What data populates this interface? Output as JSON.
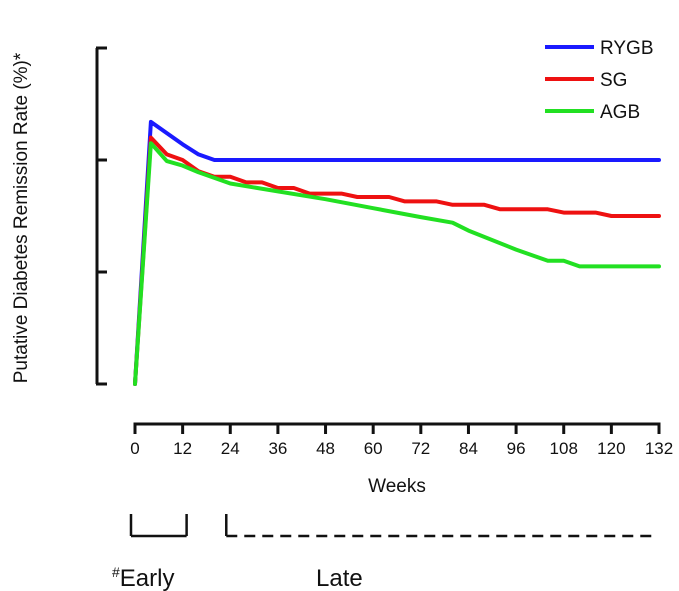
{
  "chart_data": {
    "type": "line",
    "title": "",
    "xlabel": "Weeks",
    "ylabel": "Putative Diabetes Remission Rate (%)*",
    "xlim": [
      0,
      132
    ],
    "ylim": [
      0,
      3
    ],
    "y_ticks_labeled": false,
    "x_ticks": [
      "0",
      "12",
      "24",
      "36",
      "48",
      "60",
      "72",
      "84",
      "96",
      "108",
      "120",
      "132"
    ],
    "legend_position": "top-right",
    "series": [
      {
        "name": "RYGB",
        "color": "#1a1aff",
        "x": [
          0,
          4,
          8,
          12,
          16,
          20,
          24,
          36,
          48,
          60,
          72,
          84,
          96,
          108,
          120,
          132
        ],
        "y": [
          0,
          2.34,
          2.24,
          2.14,
          2.05,
          2.0,
          2.0,
          2.0,
          2.0,
          2.0,
          2.0,
          2.0,
          2.0,
          2.0,
          2.0,
          2.0
        ]
      },
      {
        "name": "SG",
        "color": "#ee1111",
        "x": [
          0,
          4,
          8,
          12,
          16,
          20,
          24,
          28,
          32,
          36,
          40,
          44,
          48,
          52,
          56,
          60,
          64,
          68,
          72,
          76,
          80,
          84,
          88,
          92,
          96,
          100,
          104,
          108,
          112,
          116,
          120,
          124,
          128,
          132
        ],
        "y": [
          0,
          2.2,
          2.05,
          2.0,
          1.9,
          1.85,
          1.85,
          1.8,
          1.8,
          1.75,
          1.75,
          1.7,
          1.7,
          1.7,
          1.67,
          1.67,
          1.67,
          1.63,
          1.63,
          1.63,
          1.6,
          1.6,
          1.6,
          1.56,
          1.56,
          1.56,
          1.56,
          1.53,
          1.53,
          1.53,
          1.5,
          1.5,
          1.5,
          1.5
        ]
      },
      {
        "name": "AGB",
        "color": "#22e022",
        "x": [
          0,
          4,
          8,
          12,
          16,
          20,
          24,
          36,
          48,
          60,
          72,
          80,
          84,
          96,
          104,
          108,
          112,
          120,
          132
        ],
        "y": [
          0,
          2.15,
          1.99,
          1.95,
          1.89,
          1.84,
          1.79,
          1.72,
          1.65,
          1.57,
          1.49,
          1.44,
          1.37,
          1.2,
          1.1,
          1.1,
          1.05,
          1.05,
          1.05
        ]
      }
    ],
    "periods": [
      {
        "label": "Early",
        "marker": "#",
        "x_start": 0,
        "x_end": 13,
        "style": "solid"
      },
      {
        "label": "Late",
        "marker": "",
        "x_start": 24,
        "x_end": 131,
        "style": "dashed"
      }
    ]
  }
}
